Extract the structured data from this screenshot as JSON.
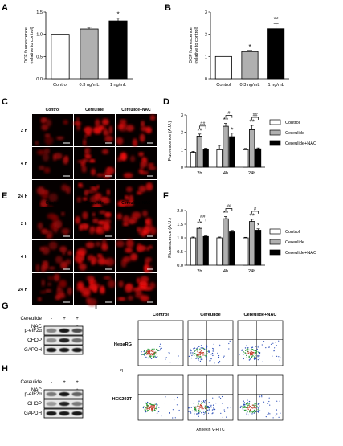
{
  "panels": {
    "A": {
      "label": "A"
    },
    "B": {
      "label": "B"
    },
    "C": {
      "label": "C",
      "columns": [
        "Control",
        "Cereulide",
        "Cereulide+NAC"
      ],
      "rows": [
        "2 h",
        "4 h",
        "24 h"
      ]
    },
    "D": {
      "label": "D"
    },
    "E": {
      "label": "E",
      "columns": [
        "Control",
        "Cereulide",
        "Cereulide+NAC"
      ],
      "rows": [
        "2 h",
        "4 h",
        "24 h"
      ]
    },
    "F": {
      "label": "F"
    },
    "G": {
      "label": "G",
      "treatments": [
        "Cereulide",
        "NAC"
      ],
      "signs": [
        [
          "-",
          "+",
          "+"
        ],
        [
          "-",
          "-",
          "+"
        ]
      ],
      "proteins": [
        "p-eIF2α",
        "CHOP",
        "GAPDH"
      ]
    },
    "H": {
      "label": "H",
      "treatments": [
        "Cereulide",
        "NAC"
      ],
      "signs": [
        [
          "-",
          "+",
          "+"
        ],
        [
          "-",
          "-",
          "+"
        ]
      ],
      "proteins": [
        "p-eIF2α",
        "CHOP",
        "GAPDH"
      ]
    },
    "I": {
      "label": "I",
      "columns": [
        "Control",
        "Cereulide",
        "Cereulide+NAC"
      ],
      "rows": [
        "HepaRG",
        "HEK293T"
      ],
      "ylabel": "PI",
      "xlabel": "Annexin V-FITC"
    }
  },
  "chart_data": [
    {
      "id": "A",
      "type": "bar",
      "categories": [
        "Control",
        "0.3 ng/mL",
        "1 ng/mL"
      ],
      "values": [
        1.0,
        1.12,
        1.3
      ],
      "errors": [
        0.0,
        0.04,
        0.06
      ],
      "sig": [
        "",
        "",
        "*"
      ],
      "colors": [
        "#ffffff",
        "#b0b0b0",
        "#000000"
      ],
      "ylabel": "DCF fluorescence\n(relative to control)",
      "ylim": [
        0,
        1.5
      ],
      "yticks": [
        "0.0",
        "0.5",
        "1.0",
        "1.5"
      ]
    },
    {
      "id": "B",
      "type": "bar",
      "categories": [
        "Control",
        "0.3 ng/mL",
        "1 ng/mL"
      ],
      "values": [
        1.0,
        1.22,
        2.25
      ],
      "errors": [
        0.0,
        0.05,
        0.24
      ],
      "sig": [
        "",
        "*",
        "**"
      ],
      "colors": [
        "#ffffff",
        "#b0b0b0",
        "#000000"
      ],
      "ylabel": "DCF fluorescence\n(relative to control)",
      "ylim": [
        0,
        3
      ],
      "yticks": [
        "0",
        "1",
        "2",
        "3"
      ]
    },
    {
      "id": "D",
      "type": "bar",
      "categories": [
        "2h",
        "4h",
        "24h"
      ],
      "series": [
        {
          "name": "Control",
          "color": "#ffffff",
          "values": [
            0.85,
            1.0,
            1.0
          ],
          "errors": [
            0.05,
            0.25,
            0.07
          ]
        },
        {
          "name": "Cereulide",
          "color": "#b0b0b0",
          "values": [
            1.78,
            2.35,
            2.15
          ],
          "errors": [
            0.12,
            0.16,
            0.25
          ]
        },
        {
          "name": "Cereulide+NAC",
          "color": "#000000",
          "values": [
            1.02,
            1.75,
            1.05
          ],
          "errors": [
            0.07,
            0.2,
            0.05
          ]
        }
      ],
      "sig": [
        [
          "",
          "**",
          ""
        ],
        [
          "",
          "**",
          "*"
        ],
        [
          "",
          "**",
          ""
        ]
      ],
      "brackets": [
        "##",
        "#",
        "##"
      ],
      "ylabel": "Fluorescence (A.U.)",
      "ylim": [
        0,
        3
      ],
      "yticks": [
        "0",
        "1",
        "2",
        "3"
      ]
    },
    {
      "id": "F",
      "type": "bar",
      "categories": [
        "2h",
        "4h",
        "24h"
      ],
      "series": [
        {
          "name": "Control",
          "color": "#ffffff",
          "values": [
            1.0,
            1.0,
            1.0
          ],
          "errors": [
            0.03,
            0.03,
            0.02
          ]
        },
        {
          "name": "Cereulide",
          "color": "#b0b0b0",
          "values": [
            1.35,
            1.7,
            1.6
          ],
          "errors": [
            0.05,
            0.08,
            0.08
          ]
        },
        {
          "name": "Cereulide+NAC",
          "color": "#000000",
          "values": [
            1.05,
            1.22,
            1.28
          ],
          "errors": [
            0.02,
            0.05,
            0.05
          ]
        }
      ],
      "sig": [
        [
          "",
          "**",
          ""
        ],
        [
          "",
          "**",
          ""
        ],
        [
          "",
          "**",
          "*"
        ]
      ],
      "brackets": [
        "##",
        "##",
        "#"
      ],
      "ylabel": "Fluorescence (A.U.)",
      "ylim": [
        0,
        2.0
      ],
      "yticks": [
        "0.0",
        "0.5",
        "1.0",
        "1.5",
        "2.0"
      ]
    }
  ]
}
